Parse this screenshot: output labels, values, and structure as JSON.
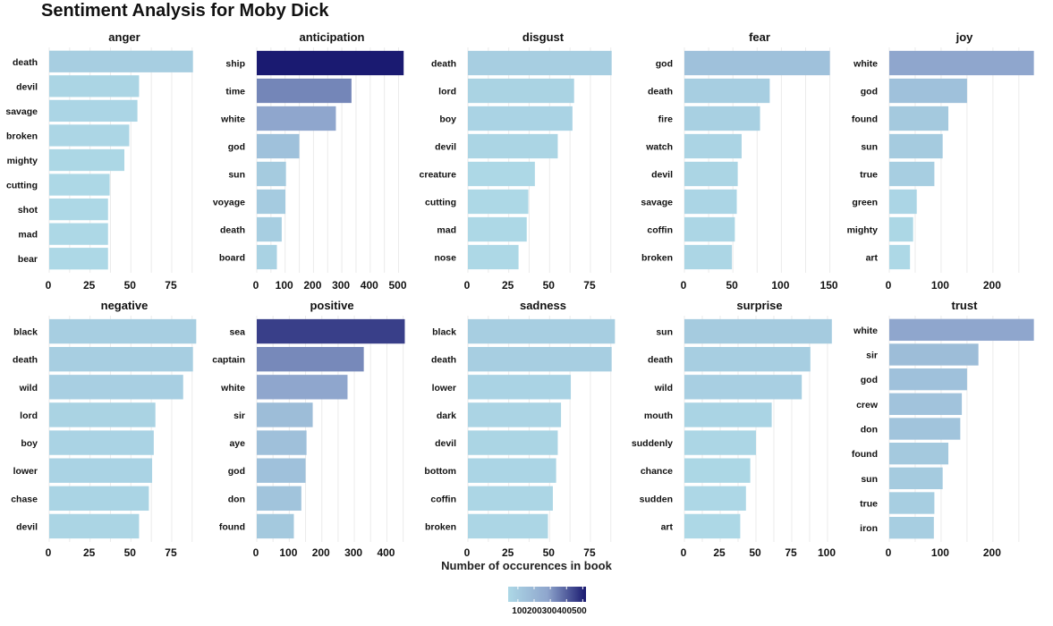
{
  "chart_data": {
    "type": "bar",
    "orientation": "horizontal",
    "title": "Sentiment Analysis for Moby Dick",
    "xlabel": "Number of occurences in book",
    "ylabel": "",
    "grid": true,
    "legend": {
      "placement": "bottom",
      "title": "",
      "ticks": [
        100,
        200,
        300,
        400,
        500
      ],
      "tick_text": "100200300400500",
      "range": [
        40,
        520
      ]
    },
    "colors": {
      "low": "#add8e6",
      "mid": "#8fa6cd",
      "high": "#191970"
    },
    "facets": [
      {
        "name": "anger",
        "ticks": [
          0,
          25,
          50,
          75
        ],
        "xlim": [
          0,
          92
        ],
        "categories": [
          "death",
          "devil",
          "savage",
          "broken",
          "mighty",
          "cutting",
          "shot",
          "mad",
          "bear"
        ],
        "values": [
          88,
          55,
          54,
          49,
          46,
          37,
          36,
          36,
          36
        ]
      },
      {
        "name": "anticipation",
        "ticks": [
          0,
          100,
          200,
          300,
          400,
          500
        ],
        "xlim": [
          0,
          530
        ],
        "categories": [
          "ship",
          "time",
          "white",
          "god",
          "sun",
          "voyage",
          "death",
          "board"
        ],
        "values": [
          518,
          334,
          279,
          150,
          103,
          101,
          88,
          71
        ]
      },
      {
        "name": "disgust",
        "ticks": [
          0,
          25,
          50,
          75
        ],
        "xlim": [
          0,
          92
        ],
        "categories": [
          "death",
          "lord",
          "boy",
          "devil",
          "creature",
          "cutting",
          "mad",
          "nose"
        ],
        "values": [
          88,
          65,
          64,
          55,
          41,
          37,
          36,
          31
        ]
      },
      {
        "name": "fear",
        "ticks": [
          0,
          50,
          100,
          150
        ],
        "xlim": [
          0,
          155
        ],
        "categories": [
          "god",
          "death",
          "fire",
          "watch",
          "devil",
          "savage",
          "coffin",
          "broken"
        ],
        "values": [
          150,
          88,
          78,
          59,
          55,
          54,
          52,
          49
        ]
      },
      {
        "name": "joy",
        "ticks": [
          0,
          100,
          200
        ],
        "xlim": [
          0,
          290
        ],
        "categories": [
          "white",
          "god",
          "found",
          "sun",
          "true",
          "green",
          "mighty",
          "art"
        ],
        "values": [
          279,
          150,
          114,
          103,
          87,
          53,
          46,
          40
        ]
      },
      {
        "name": "negative",
        "ticks": [
          0,
          25,
          50,
          75
        ],
        "xlim": [
          0,
          92
        ],
        "categories": [
          "black",
          "death",
          "wild",
          "lord",
          "boy",
          "lower",
          "chase",
          "devil"
        ],
        "values": [
          90,
          88,
          82,
          65,
          64,
          63,
          61,
          55
        ]
      },
      {
        "name": "positive",
        "ticks": [
          0,
          100,
          200,
          300,
          400
        ],
        "xlim": [
          0,
          462
        ],
        "categories": [
          "sea",
          "captain",
          "white",
          "sir",
          "aye",
          "god",
          "don",
          "found"
        ],
        "values": [
          455,
          329,
          279,
          172,
          153,
          150,
          137,
          114
        ]
      },
      {
        "name": "sadness",
        "ticks": [
          0,
          25,
          50,
          75
        ],
        "xlim": [
          0,
          92
        ],
        "categories": [
          "black",
          "death",
          "lower",
          "dark",
          "devil",
          "bottom",
          "coffin",
          "broken"
        ],
        "values": [
          90,
          88,
          63,
          57,
          55,
          54,
          52,
          49
        ]
      },
      {
        "name": "surprise",
        "ticks": [
          0,
          25,
          50,
          75,
          100
        ],
        "xlim": [
          0,
          105
        ],
        "categories": [
          "sun",
          "death",
          "wild",
          "mouth",
          "suddenly",
          "chance",
          "sudden",
          "art"
        ],
        "values": [
          103,
          88,
          82,
          61,
          50,
          46,
          43,
          39
        ]
      },
      {
        "name": "trust",
        "ticks": [
          0,
          100,
          200
        ],
        "xlim": [
          0,
          290
        ],
        "categories": [
          "white",
          "sir",
          "god",
          "crew",
          "don",
          "found",
          "sun",
          "true",
          "iron"
        ],
        "values": [
          279,
          172,
          150,
          140,
          137,
          114,
          103,
          87,
          86
        ]
      }
    ]
  }
}
